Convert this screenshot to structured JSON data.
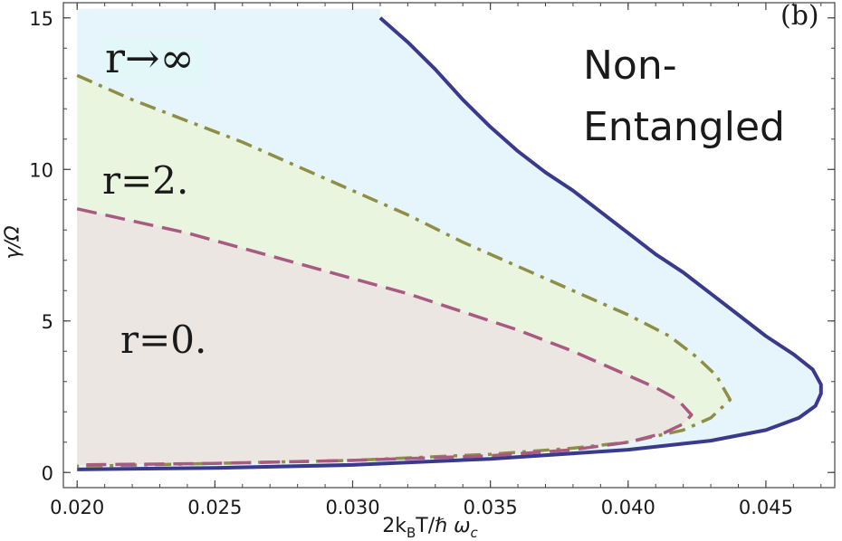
{
  "chart_data": {
    "type": "area",
    "panel_label": "(b)",
    "xlabel": "2k_B T/ℏ ω_c",
    "ylabel": "γ/Ω",
    "xlim": [
      0.0195,
      0.0475
    ],
    "ylim": [
      -0.5,
      15.5
    ],
    "x_ticks": [
      0.02,
      0.025,
      0.03,
      0.035,
      0.04,
      0.045
    ],
    "x_tick_labels": [
      "0.020",
      "0.025",
      "0.030",
      "0.035",
      "0.040",
      "0.045"
    ],
    "y_ticks": [
      0,
      5,
      10,
      15
    ],
    "y_tick_labels": [
      "0",
      "5",
      "10",
      "15"
    ],
    "grid": false,
    "annotations": {
      "non_entangled_line1": "Non-",
      "non_entangled_line2": "Entangled",
      "r_inf": "r→∞",
      "r_two": "r=2.",
      "r_zero": "r=0."
    },
    "series": [
      {
        "name": "r→∞",
        "line_style": "solid",
        "color": "#3a3a8c",
        "fill": "#e6f5fc",
        "upper": [
          [
            0.031,
            15.0
          ],
          [
            0.032,
            14.2
          ],
          [
            0.033,
            13.3
          ],
          [
            0.034,
            12.3
          ],
          [
            0.035,
            11.4
          ],
          [
            0.036,
            10.6
          ],
          [
            0.037,
            9.9
          ],
          [
            0.038,
            9.3
          ],
          [
            0.039,
            8.6
          ],
          [
            0.04,
            7.9
          ],
          [
            0.041,
            7.2
          ],
          [
            0.042,
            6.6
          ],
          [
            0.043,
            5.9
          ],
          [
            0.044,
            5.2
          ],
          [
            0.045,
            4.5
          ],
          [
            0.046,
            3.9
          ],
          [
            0.0467,
            3.4
          ],
          [
            0.047,
            2.9
          ],
          [
            0.047,
            2.6
          ]
        ],
        "lower": [
          [
            0.02,
            0.1
          ],
          [
            0.025,
            0.15
          ],
          [
            0.03,
            0.25
          ],
          [
            0.035,
            0.45
          ],
          [
            0.04,
            0.75
          ],
          [
            0.043,
            1.05
          ],
          [
            0.045,
            1.4
          ],
          [
            0.0462,
            1.8
          ],
          [
            0.0468,
            2.2
          ],
          [
            0.047,
            2.6
          ]
        ],
        "fill_to_top": [
          0.02,
          0.031,
          15.3
        ]
      },
      {
        "name": "r=2.",
        "line_style": "dash-dot",
        "color": "#8e8e46",
        "fill": "#eaf5e0",
        "upper": [
          [
            0.02,
            13.1
          ],
          [
            0.022,
            12.3
          ],
          [
            0.024,
            11.6
          ],
          [
            0.026,
            10.9
          ],
          [
            0.028,
            10.1
          ],
          [
            0.03,
            9.3
          ],
          [
            0.032,
            8.5
          ],
          [
            0.034,
            7.6
          ],
          [
            0.036,
            6.8
          ],
          [
            0.038,
            6.0
          ],
          [
            0.04,
            5.2
          ],
          [
            0.0415,
            4.5
          ],
          [
            0.0425,
            3.8
          ],
          [
            0.0432,
            3.2
          ],
          [
            0.0437,
            2.4
          ]
        ],
        "lower": [
          [
            0.02,
            0.2
          ],
          [
            0.025,
            0.3
          ],
          [
            0.03,
            0.4
          ],
          [
            0.035,
            0.6
          ],
          [
            0.038,
            0.8
          ],
          [
            0.04,
            1.0
          ],
          [
            0.042,
            1.4
          ],
          [
            0.043,
            1.8
          ],
          [
            0.0437,
            2.4
          ]
        ]
      },
      {
        "name": "r=0.",
        "line_style": "dashed",
        "color": "#a85a80",
        "fill": "#ebe6e2",
        "upper": [
          [
            0.02,
            8.7
          ],
          [
            0.022,
            8.3
          ],
          [
            0.024,
            7.9
          ],
          [
            0.026,
            7.4
          ],
          [
            0.028,
            6.9
          ],
          [
            0.03,
            6.4
          ],
          [
            0.032,
            5.9
          ],
          [
            0.034,
            5.3
          ],
          [
            0.036,
            4.7
          ],
          [
            0.038,
            4.0
          ],
          [
            0.0395,
            3.4
          ],
          [
            0.041,
            2.8
          ],
          [
            0.0418,
            2.4
          ],
          [
            0.0423,
            1.9
          ]
        ],
        "lower": [
          [
            0.02,
            0.25
          ],
          [
            0.025,
            0.3
          ],
          [
            0.03,
            0.4
          ],
          [
            0.035,
            0.55
          ],
          [
            0.038,
            0.75
          ],
          [
            0.04,
            1.0
          ],
          [
            0.0413,
            1.3
          ],
          [
            0.042,
            1.6
          ],
          [
            0.0423,
            1.9
          ]
        ]
      }
    ]
  }
}
